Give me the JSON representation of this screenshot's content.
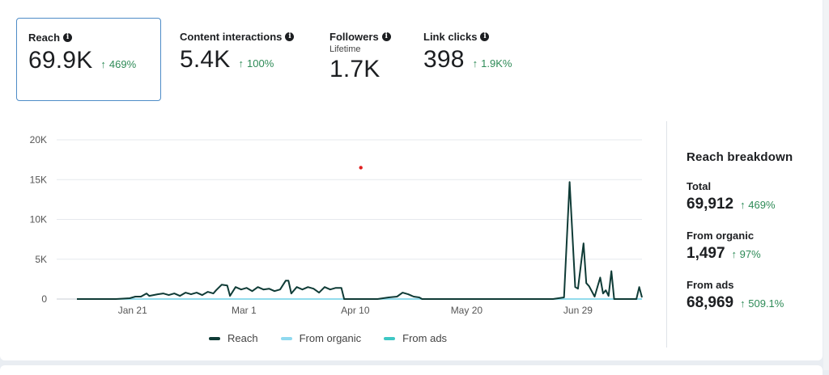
{
  "metrics": [
    {
      "title": "Reach",
      "value": "69.9K",
      "change": "469%",
      "subtitle": ""
    },
    {
      "title": "Content interactions",
      "value": "5.4K",
      "change": "100%",
      "subtitle": ""
    },
    {
      "title": "Followers",
      "value": "1.7K",
      "change": "",
      "subtitle": "Lifetime"
    },
    {
      "title": "Link clicks",
      "value": "398",
      "change": "1.9K%",
      "subtitle": ""
    }
  ],
  "icons": {
    "info": "info-icon",
    "up_arrow": "arrow-up-icon"
  },
  "breakdown": {
    "title": "Reach breakdown",
    "items": [
      {
        "label": "Total",
        "value": "69,912",
        "change": "469%"
      },
      {
        "label": "From organic",
        "value": "1,497",
        "change": "97%"
      },
      {
        "label": "From ads",
        "value": "68,969",
        "change": "509.1%"
      }
    ]
  },
  "colors": {
    "reach": "#0f3b36",
    "organic": "#8fd9ef",
    "ads": "#3ec7c4",
    "positive": "#2e8b57",
    "selected_border": "#4e8cc7"
  },
  "chart_data": {
    "type": "line",
    "title": "",
    "xlabel": "",
    "ylabel": "",
    "ylim": [
      0,
      20000
    ],
    "yticks": [
      0,
      5000,
      10000,
      15000,
      20000
    ],
    "ytick_labels": [
      "0",
      "5K",
      "10K",
      "15K",
      "20K"
    ],
    "xticks": [
      "2024-01-21",
      "2024-03-01",
      "2024-04-10",
      "2024-05-20",
      "2024-06-29"
    ],
    "xtick_labels": [
      "Jan 21",
      "Mar 1",
      "Apr 10",
      "May 20",
      "Jun 29"
    ],
    "grid": true,
    "legend": "bottom",
    "series": [
      {
        "name": "Reach",
        "color": "#0f3b36",
        "points": [
          [
            "2024-01-01",
            0
          ],
          [
            "2024-01-15",
            0
          ],
          [
            "2024-01-20",
            100
          ],
          [
            "2024-01-22",
            300
          ],
          [
            "2024-01-24",
            300
          ],
          [
            "2024-01-26",
            700
          ],
          [
            "2024-01-27",
            400
          ],
          [
            "2024-01-30",
            600
          ],
          [
            "2024-02-01",
            700
          ],
          [
            "2024-02-03",
            500
          ],
          [
            "2024-02-05",
            700
          ],
          [
            "2024-02-07",
            400
          ],
          [
            "2024-02-09",
            800
          ],
          [
            "2024-02-11",
            600
          ],
          [
            "2024-02-13",
            800
          ],
          [
            "2024-02-15",
            500
          ],
          [
            "2024-02-17",
            900
          ],
          [
            "2024-02-19",
            700
          ],
          [
            "2024-02-20",
            1100
          ],
          [
            "2024-02-22",
            1800
          ],
          [
            "2024-02-24",
            1700
          ],
          [
            "2024-02-25",
            400
          ],
          [
            "2024-02-27",
            1500
          ],
          [
            "2024-02-29",
            1200
          ],
          [
            "2024-03-02",
            1400
          ],
          [
            "2024-03-04",
            1000
          ],
          [
            "2024-03-06",
            1500
          ],
          [
            "2024-03-08",
            1200
          ],
          [
            "2024-03-10",
            1300
          ],
          [
            "2024-03-12",
            1000
          ],
          [
            "2024-03-14",
            1200
          ],
          [
            "2024-03-16",
            2300
          ],
          [
            "2024-03-17",
            2300
          ],
          [
            "2024-03-18",
            700
          ],
          [
            "2024-03-20",
            1500
          ],
          [
            "2024-03-22",
            1200
          ],
          [
            "2024-03-24",
            1500
          ],
          [
            "2024-03-26",
            1300
          ],
          [
            "2024-03-28",
            800
          ],
          [
            "2024-03-30",
            1500
          ],
          [
            "2024-04-01",
            1200
          ],
          [
            "2024-04-03",
            1400
          ],
          [
            "2024-04-05",
            1400
          ],
          [
            "2024-04-06",
            0
          ],
          [
            "2024-04-18",
            0
          ],
          [
            "2024-04-22",
            200
          ],
          [
            "2024-04-25",
            300
          ],
          [
            "2024-04-27",
            800
          ],
          [
            "2024-04-29",
            600
          ],
          [
            "2024-05-01",
            300
          ],
          [
            "2024-05-03",
            200
          ],
          [
            "2024-05-04",
            0
          ],
          [
            "2024-06-20",
            0
          ],
          [
            "2024-06-24",
            200
          ],
          [
            "2024-06-26",
            14700
          ],
          [
            "2024-06-28",
            1500
          ],
          [
            "2024-06-29",
            1300
          ],
          [
            "2024-07-01",
            7000
          ],
          [
            "2024-07-02",
            2000
          ],
          [
            "2024-07-03",
            1600
          ],
          [
            "2024-07-05",
            300
          ],
          [
            "2024-07-07",
            2700
          ],
          [
            "2024-07-08",
            700
          ],
          [
            "2024-07-09",
            1100
          ],
          [
            "2024-07-10",
            400
          ],
          [
            "2024-07-11",
            3500
          ],
          [
            "2024-07-12",
            0
          ],
          [
            "2024-07-20",
            0
          ],
          [
            "2024-07-21",
            1500
          ],
          [
            "2024-07-22",
            200
          ]
        ]
      },
      {
        "name": "From organic",
        "color": "#8fd9ef",
        "points": [
          [
            "2024-01-01",
            10
          ],
          [
            "2024-07-22",
            10
          ]
        ]
      },
      {
        "name": "From ads",
        "color": "#3ec7c4",
        "points": [
          [
            "2024-01-01",
            0
          ],
          [
            "2024-07-22",
            0
          ]
        ]
      }
    ],
    "annotations": [
      {
        "type": "marker",
        "x": "2024-04-12",
        "y": 16500,
        "color": "#e02020"
      }
    ]
  }
}
